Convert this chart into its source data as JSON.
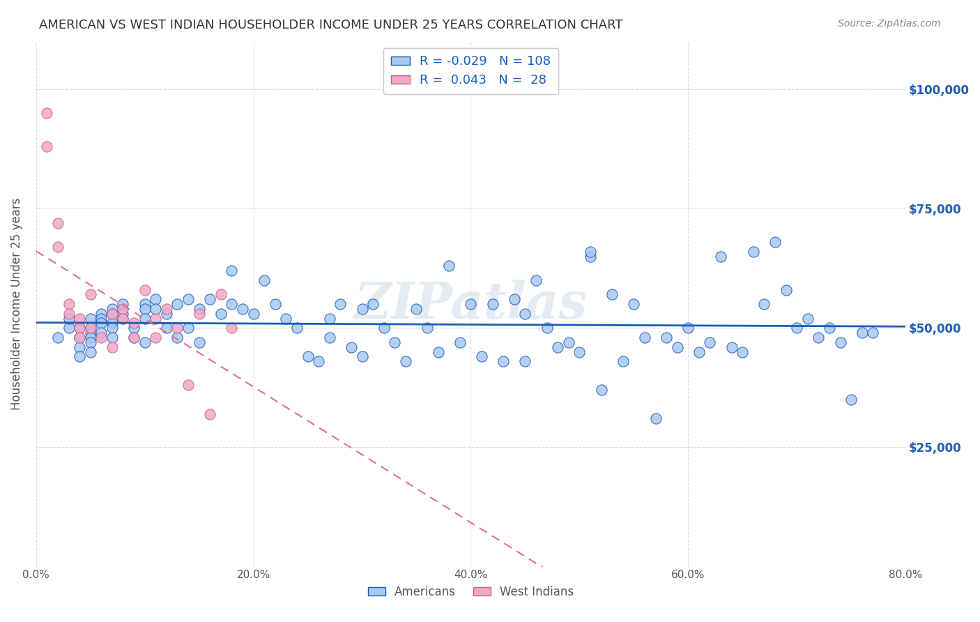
{
  "title": "AMERICAN VS WEST INDIAN HOUSEHOLDER INCOME UNDER 25 YEARS CORRELATION CHART",
  "source": "Source: ZipAtlas.com",
  "ylabel": "Householder Income Under 25 years",
  "xlabel_ticks": [
    "0.0%",
    "20.0%",
    "40.0%",
    "60.0%",
    "80.0%"
  ],
  "xlabel_vals": [
    0.0,
    0.2,
    0.4,
    0.6,
    0.8
  ],
  "ytick_labels": [
    "$25,000",
    "$50,000",
    "$75,000",
    "$100,000"
  ],
  "ytick_vals": [
    25000,
    50000,
    75000,
    100000
  ],
  "xlim": [
    0.0,
    0.8
  ],
  "ylim": [
    0,
    110000
  ],
  "legend_r_american": "-0.029",
  "legend_n_american": "108",
  "legend_r_west_indian": "0.043",
  "legend_n_west_indian": "28",
  "american_color": "#a8c8f0",
  "west_indian_color": "#f0a8c8",
  "american_line_color": "#1a5eb8",
  "west_indian_line_color": "#e07090",
  "watermark": "ZIPatlas",
  "background_color": "#ffffff",
  "americans_x": [
    0.02,
    0.03,
    0.03,
    0.04,
    0.04,
    0.04,
    0.04,
    0.05,
    0.05,
    0.05,
    0.05,
    0.05,
    0.05,
    0.06,
    0.06,
    0.06,
    0.06,
    0.07,
    0.07,
    0.07,
    0.07,
    0.07,
    0.08,
    0.08,
    0.08,
    0.09,
    0.09,
    0.1,
    0.1,
    0.1,
    0.1,
    0.11,
    0.11,
    0.12,
    0.12,
    0.13,
    0.13,
    0.14,
    0.14,
    0.15,
    0.15,
    0.16,
    0.17,
    0.18,
    0.18,
    0.19,
    0.2,
    0.21,
    0.22,
    0.23,
    0.24,
    0.25,
    0.26,
    0.27,
    0.27,
    0.28,
    0.29,
    0.3,
    0.3,
    0.31,
    0.32,
    0.33,
    0.34,
    0.35,
    0.36,
    0.37,
    0.38,
    0.39,
    0.4,
    0.41,
    0.42,
    0.43,
    0.44,
    0.45,
    0.45,
    0.46,
    0.47,
    0.48,
    0.49,
    0.5,
    0.51,
    0.51,
    0.52,
    0.53,
    0.54,
    0.55,
    0.56,
    0.57,
    0.58,
    0.59,
    0.6,
    0.61,
    0.62,
    0.63,
    0.64,
    0.65,
    0.66,
    0.67,
    0.68,
    0.69,
    0.7,
    0.71,
    0.72,
    0.73,
    0.74,
    0.75,
    0.76,
    0.77
  ],
  "americans_y": [
    48000,
    50000,
    52000,
    50000,
    48000,
    46000,
    44000,
    52000,
    50000,
    49000,
    48000,
    47000,
    45000,
    53000,
    52000,
    51000,
    49000,
    54000,
    53000,
    51000,
    50000,
    48000,
    55000,
    53000,
    52000,
    50000,
    48000,
    55000,
    54000,
    52000,
    47000,
    56000,
    54000,
    53000,
    50000,
    55000,
    48000,
    56000,
    50000,
    54000,
    47000,
    56000,
    53000,
    62000,
    55000,
    54000,
    53000,
    60000,
    55000,
    52000,
    50000,
    44000,
    43000,
    52000,
    48000,
    55000,
    46000,
    54000,
    44000,
    55000,
    50000,
    47000,
    43000,
    54000,
    50000,
    45000,
    63000,
    47000,
    55000,
    44000,
    55000,
    43000,
    56000,
    43000,
    53000,
    60000,
    50000,
    46000,
    47000,
    45000,
    65000,
    66000,
    37000,
    57000,
    43000,
    55000,
    48000,
    31000,
    48000,
    46000,
    50000,
    45000,
    47000,
    65000,
    46000,
    45000,
    66000,
    55000,
    68000,
    58000,
    50000,
    52000,
    48000,
    50000,
    47000,
    35000,
    49000,
    49000
  ],
  "west_indians_x": [
    0.01,
    0.01,
    0.02,
    0.02,
    0.03,
    0.03,
    0.04,
    0.04,
    0.04,
    0.05,
    0.05,
    0.06,
    0.07,
    0.07,
    0.08,
    0.08,
    0.09,
    0.09,
    0.1,
    0.11,
    0.11,
    0.12,
    0.13,
    0.14,
    0.15,
    0.16,
    0.17,
    0.18
  ],
  "west_indians_y": [
    95000,
    88000,
    72000,
    67000,
    55000,
    53000,
    52000,
    50000,
    48000,
    57000,
    50000,
    48000,
    53000,
    46000,
    54000,
    52000,
    51000,
    48000,
    58000,
    52000,
    48000,
    54000,
    50000,
    38000,
    53000,
    32000,
    57000,
    50000
  ]
}
